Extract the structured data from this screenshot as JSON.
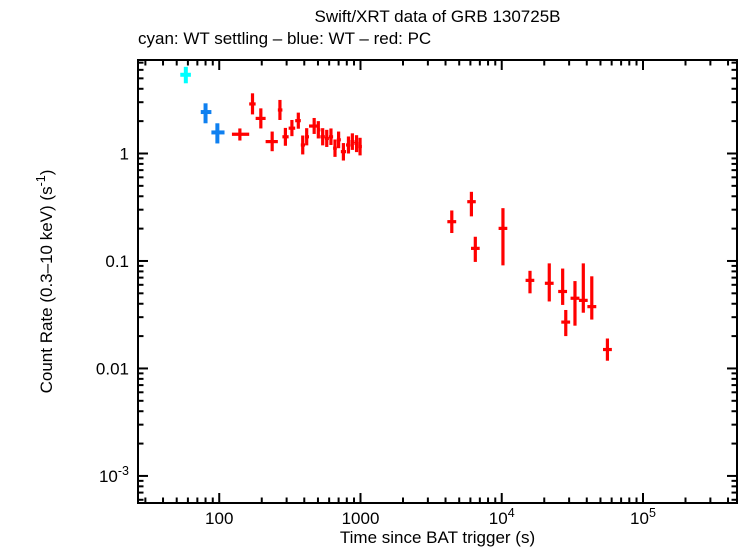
{
  "chart_data": {
    "type": "scatter",
    "title": "Swift/XRT data of GRB 130725B",
    "subtitle": "cyan: WT settling – blue: WT – red: PC",
    "xlabel": "Time since BAT trigger (s)",
    "ylabel": "Count Rate (0.3–10 keV) (s^-1^)",
    "x_scale": "log",
    "y_scale": "log",
    "xlim": [
      26.6,
      463000
    ],
    "ylim": [
      0.00056,
      7.41
    ],
    "grid": false,
    "legend_position": "subtitle",
    "x_ticks": [
      {
        "t": 100,
        "label": "100"
      },
      {
        "t": 1000,
        "label": "1000"
      },
      {
        "t": 10000,
        "label": "10^4"
      },
      {
        "t": 100000,
        "label": "10^5"
      }
    ],
    "y_ticks": [
      {
        "r": 1,
        "label": "1"
      },
      {
        "r": 0.1,
        "label": "0.1"
      },
      {
        "r": 0.01,
        "label": "0.01"
      },
      {
        "r": 0.001,
        "label": "10^-3"
      }
    ],
    "series": [
      {
        "name": "WT settling",
        "color": "#00ffff",
        "points": [
          {
            "t": 58,
            "t_lo": 53,
            "t_hi": 63,
            "rate": 5.4,
            "rate_lo": 4.5,
            "rate_hi": 6.4
          }
        ]
      },
      {
        "name": "WT",
        "color": "#0f80f0",
        "points": [
          {
            "t": 80,
            "t_lo": 74,
            "t_hi": 88,
            "rate": 2.43,
            "rate_lo": 1.91,
            "rate_hi": 2.93
          },
          {
            "t": 97,
            "t_lo": 88,
            "t_hi": 109,
            "rate": 1.57,
            "rate_lo": 1.24,
            "rate_hi": 1.91
          }
        ]
      },
      {
        "name": "PC",
        "color": "#ff0000",
        "points": [
          {
            "t": 140,
            "t_lo": 123,
            "t_hi": 163,
            "rate": 1.51,
            "rate_lo": 1.32,
            "rate_hi": 1.71
          },
          {
            "t": 172,
            "t_lo": 163,
            "t_hi": 181,
            "rate": 2.89,
            "rate_lo": 2.31,
            "rate_hi": 3.63
          },
          {
            "t": 197,
            "t_lo": 181,
            "t_hi": 213,
            "rate": 2.12,
            "rate_lo": 1.71,
            "rate_hi": 2.63
          },
          {
            "t": 237,
            "t_lo": 213,
            "t_hi": 260,
            "rate": 1.29,
            "rate_lo": 1.05,
            "rate_hi": 1.6
          },
          {
            "t": 269,
            "t_lo": 260,
            "t_hi": 280,
            "rate": 2.54,
            "rate_lo": 2.05,
            "rate_hi": 3.15
          },
          {
            "t": 294,
            "t_lo": 280,
            "t_hi": 310,
            "rate": 1.43,
            "rate_lo": 1.18,
            "rate_hi": 1.73
          },
          {
            "t": 327,
            "t_lo": 310,
            "t_hi": 345,
            "rate": 1.72,
            "rate_lo": 1.45,
            "rate_hi": 2.05
          },
          {
            "t": 363,
            "t_lo": 345,
            "t_hi": 378,
            "rate": 2.02,
            "rate_lo": 1.7,
            "rate_hi": 2.4
          },
          {
            "t": 390,
            "t_lo": 378,
            "t_hi": 405,
            "rate": 1.2,
            "rate_lo": 0.98,
            "rate_hi": 1.47
          },
          {
            "t": 416,
            "t_lo": 405,
            "t_hi": 432,
            "rate": 1.43,
            "rate_lo": 1.19,
            "rate_hi": 1.72
          },
          {
            "t": 470,
            "t_lo": 432,
            "t_hi": 492,
            "rate": 1.8,
            "rate_lo": 1.52,
            "rate_hi": 2.14
          },
          {
            "t": 503,
            "t_lo": 492,
            "t_hi": 520,
            "rate": 1.66,
            "rate_lo": 1.38,
            "rate_hi": 2.0
          },
          {
            "t": 540,
            "t_lo": 520,
            "t_hi": 560,
            "rate": 1.43,
            "rate_lo": 1.19,
            "rate_hi": 1.72
          },
          {
            "t": 577,
            "t_lo": 560,
            "t_hi": 598,
            "rate": 1.38,
            "rate_lo": 1.15,
            "rate_hi": 1.66
          },
          {
            "t": 618,
            "t_lo": 598,
            "t_hi": 640,
            "rate": 1.43,
            "rate_lo": 1.2,
            "rate_hi": 1.71
          },
          {
            "t": 660,
            "t_lo": 640,
            "t_hi": 680,
            "rate": 1.12,
            "rate_lo": 0.93,
            "rate_hi": 1.35
          },
          {
            "t": 700,
            "t_lo": 680,
            "t_hi": 726,
            "rate": 1.34,
            "rate_lo": 1.12,
            "rate_hi": 1.6
          },
          {
            "t": 757,
            "t_lo": 726,
            "t_hi": 790,
            "rate": 1.04,
            "rate_lo": 0.86,
            "rate_hi": 1.25
          },
          {
            "t": 822,
            "t_lo": 790,
            "t_hi": 849,
            "rate": 1.2,
            "rate_lo": 1.0,
            "rate_hi": 1.44
          },
          {
            "t": 876,
            "t_lo": 849,
            "t_hi": 906,
            "rate": 1.29,
            "rate_lo": 1.08,
            "rate_hi": 1.54
          },
          {
            "t": 938,
            "t_lo": 906,
            "t_hi": 964,
            "rate": 1.24,
            "rate_lo": 1.03,
            "rate_hi": 1.48
          },
          {
            "t": 993,
            "t_lo": 964,
            "t_hi": 1023,
            "rate": 1.16,
            "rate_lo": 0.96,
            "rate_hi": 1.4
          },
          {
            "t": 4430,
            "t_lo": 4120,
            "t_hi": 4760,
            "rate": 0.232,
            "rate_lo": 0.182,
            "rate_hi": 0.295
          },
          {
            "t": 6100,
            "t_lo": 5700,
            "t_hi": 6550,
            "rate": 0.356,
            "rate_lo": 0.26,
            "rate_hi": 0.44
          },
          {
            "t": 6500,
            "t_lo": 6060,
            "t_hi": 6980,
            "rate": 0.131,
            "rate_lo": 0.098,
            "rate_hi": 0.168
          },
          {
            "t": 10200,
            "t_lo": 9500,
            "t_hi": 10950,
            "rate": 0.201,
            "rate_lo": 0.091,
            "rate_hi": 0.31
          },
          {
            "t": 15850,
            "t_lo": 14750,
            "t_hi": 17000,
            "rate": 0.066,
            "rate_lo": 0.05,
            "rate_hi": 0.081
          },
          {
            "t": 21700,
            "t_lo": 20200,
            "t_hi": 23300,
            "rate": 0.062,
            "rate_lo": 0.042,
            "rate_hi": 0.095
          },
          {
            "t": 27000,
            "t_lo": 25100,
            "t_hi": 29000,
            "rate": 0.052,
            "rate_lo": 0.039,
            "rate_hi": 0.085
          },
          {
            "t": 28400,
            "t_lo": 26400,
            "t_hi": 30500,
            "rate": 0.027,
            "rate_lo": 0.02,
            "rate_hi": 0.035
          },
          {
            "t": 33000,
            "t_lo": 30700,
            "t_hi": 35500,
            "rate": 0.045,
            "rate_lo": 0.025,
            "rate_hi": 0.065
          },
          {
            "t": 37800,
            "t_lo": 35200,
            "t_hi": 40600,
            "rate": 0.043,
            "rate_lo": 0.033,
            "rate_hi": 0.095
          },
          {
            "t": 43400,
            "t_lo": 40400,
            "t_hi": 46700,
            "rate": 0.0376,
            "rate_lo": 0.0285,
            "rate_hi": 0.072
          },
          {
            "t": 56000,
            "t_lo": 52100,
            "t_hi": 60200,
            "rate": 0.015,
            "rate_lo": 0.0118,
            "rate_hi": 0.019
          }
        ]
      }
    ]
  }
}
